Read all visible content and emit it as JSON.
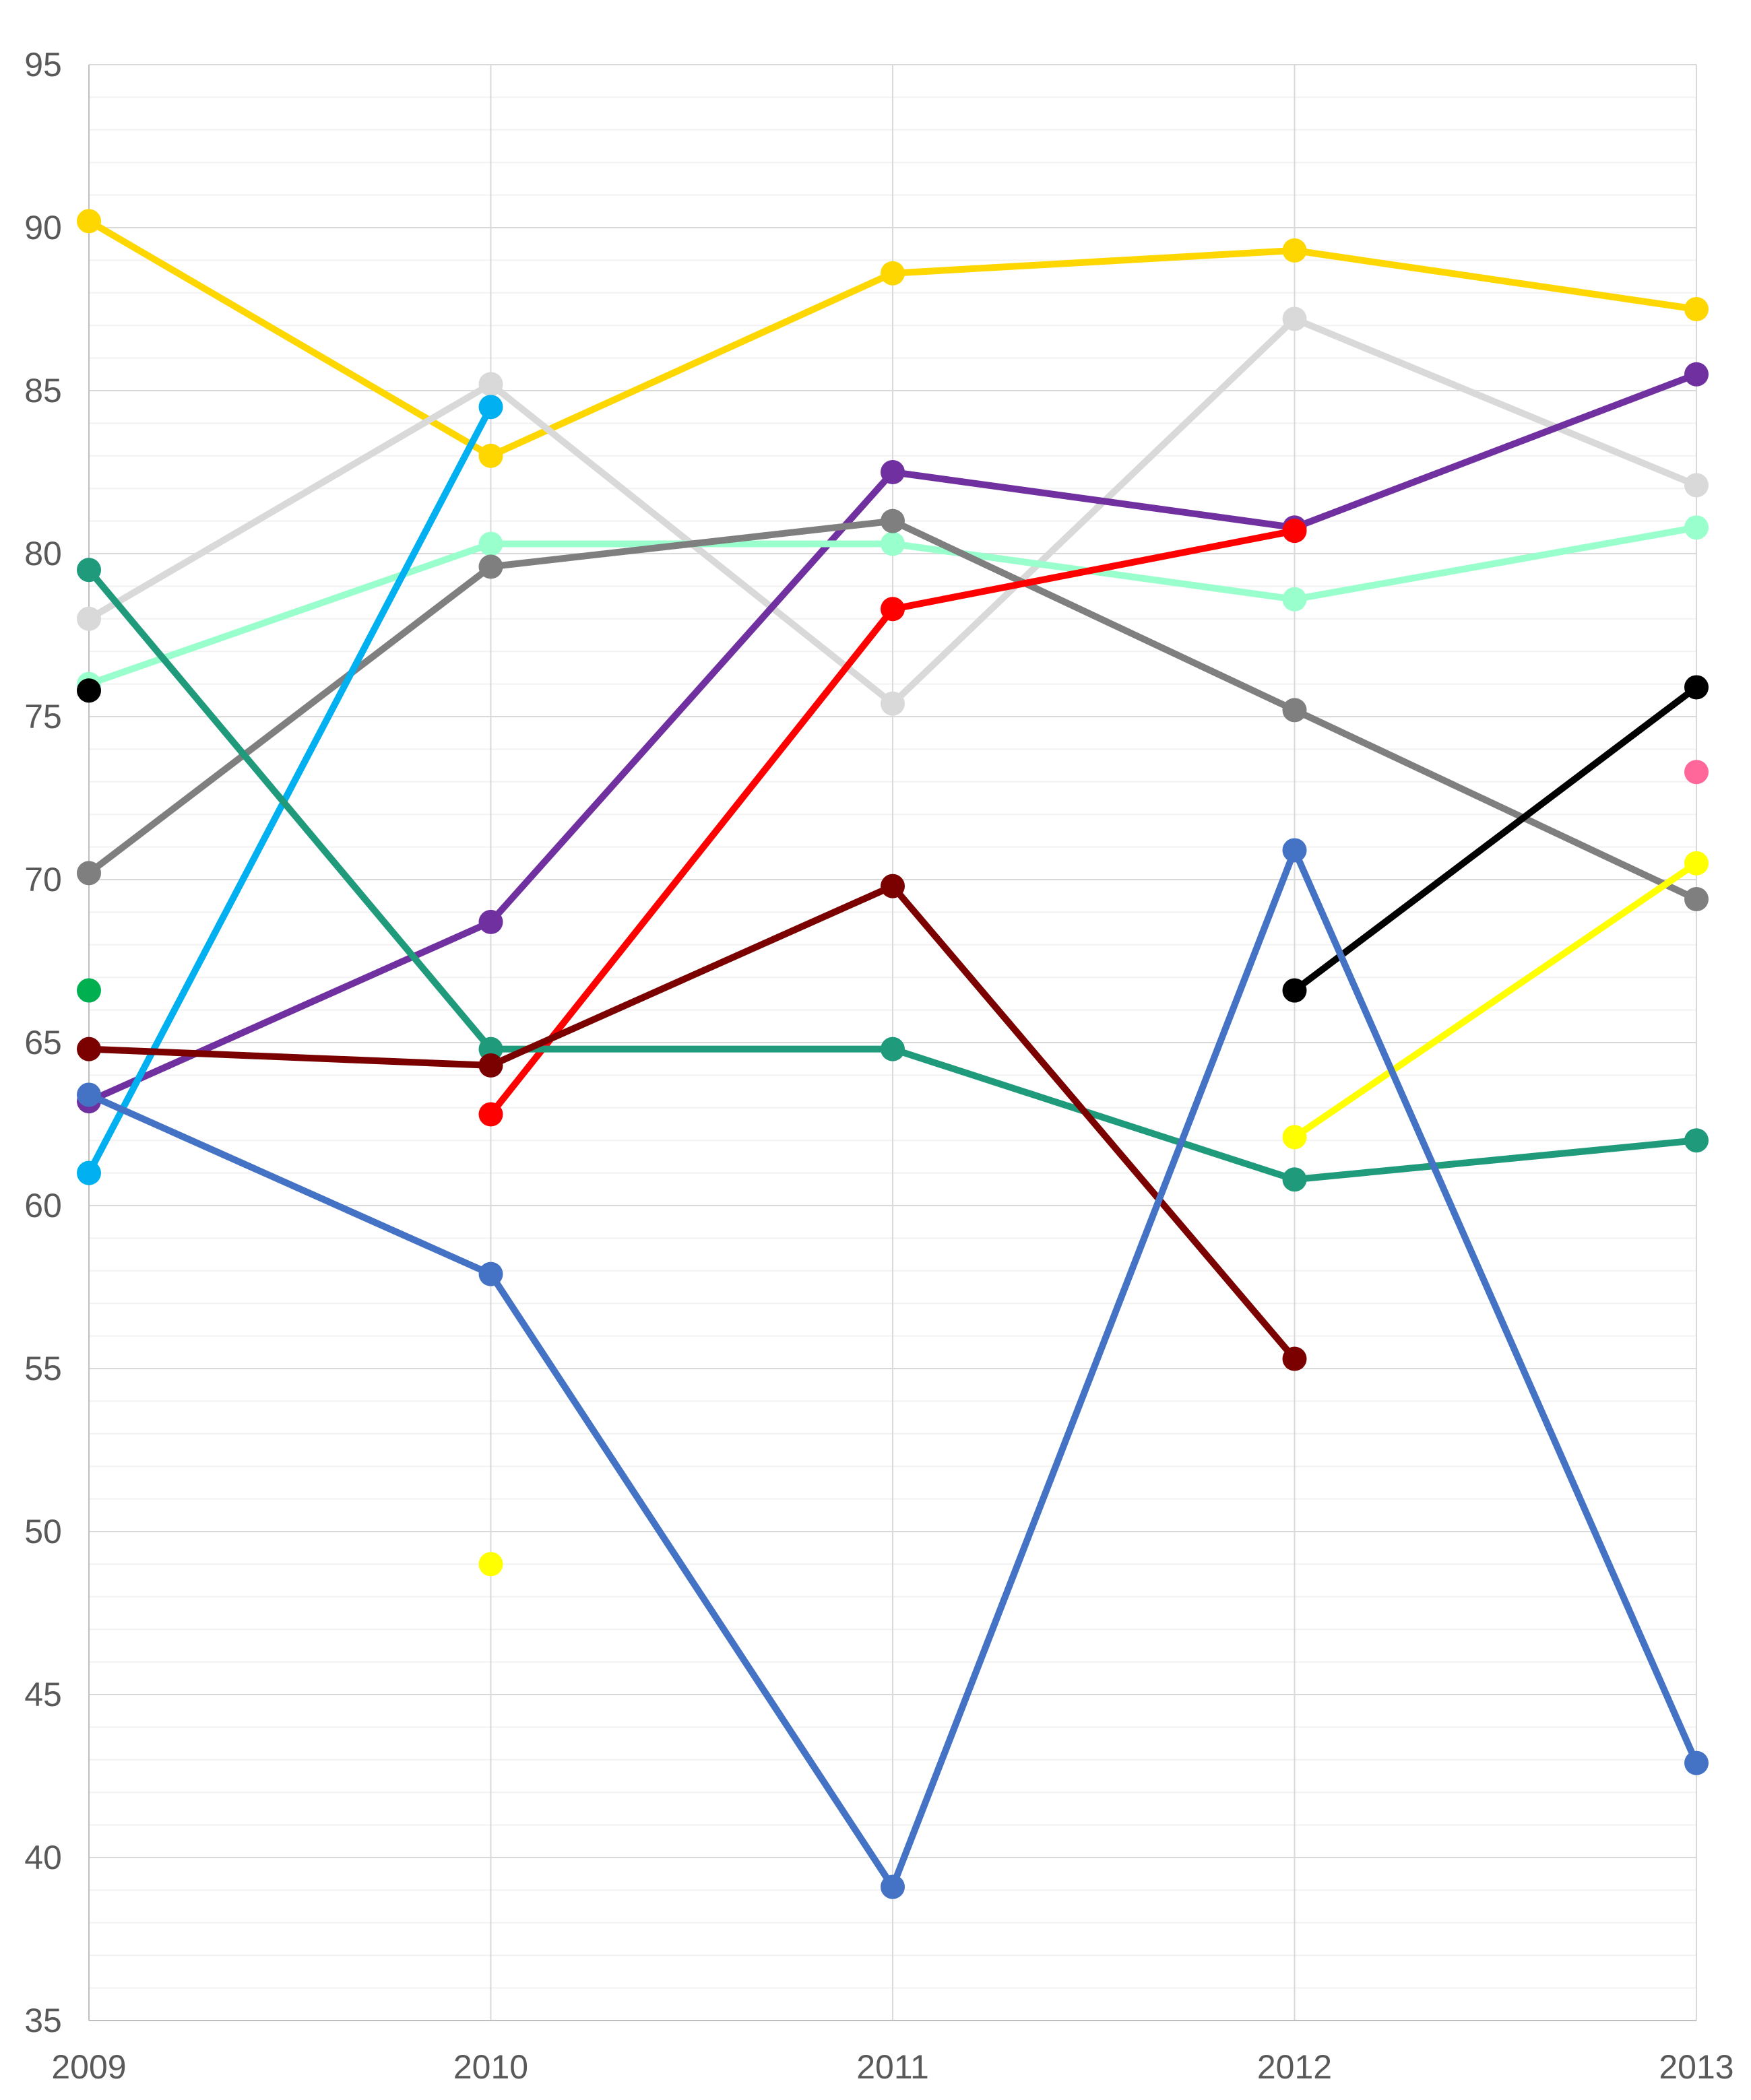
{
  "chart_data": {
    "type": "line",
    "title": "",
    "xlabel": "",
    "ylabel": "",
    "x": [
      "2009",
      "2010",
      "2011",
      "2012",
      "2013"
    ],
    "ylim": [
      35,
      95
    ],
    "yticks": [
      "35",
      "40",
      "45",
      "50",
      "55",
      "60",
      "65",
      "70",
      "75",
      "80",
      "85",
      "90",
      "95"
    ],
    "grid": {
      "major_y_step": 5,
      "minor_y_step": 1,
      "vertical_gridlines": true
    },
    "legend": "none",
    "series": [
      {
        "color": "#FFD700",
        "values": [
          90.2,
          83.0,
          88.6,
          89.3,
          87.5
        ]
      },
      {
        "color": "#D9D9D9",
        "values": [
          78.0,
          85.2,
          75.4,
          87.2,
          82.1
        ]
      },
      {
        "color": "#7030A0",
        "values": [
          63.2,
          68.7,
          82.5,
          80.8,
          85.5
        ]
      },
      {
        "color": "#99FFCC",
        "values": [
          76.0,
          80.3,
          80.3,
          78.6,
          80.8
        ]
      },
      {
        "color": "#7F7F7F",
        "values": [
          70.2,
          79.6,
          81.0,
          75.2,
          69.4
        ]
      },
      {
        "color": "#FF0000",
        "values": [
          null,
          62.8,
          78.3,
          80.7,
          null
        ]
      },
      {
        "color": "#000000",
        "values": [
          75.8,
          null,
          null,
          66.6,
          75.9
        ]
      },
      {
        "color": "#FF6699",
        "values": [
          null,
          null,
          null,
          null,
          73.3
        ]
      },
      {
        "color": "#FFFF00",
        "values": [
          null,
          49.0,
          null,
          62.1,
          70.5
        ]
      },
      {
        "color": "#00B0F0",
        "values": [
          61.0,
          84.5,
          null,
          null,
          null
        ]
      },
      {
        "color": "#1F9A7B",
        "values": [
          79.5,
          64.8,
          64.8,
          60.8,
          62.0
        ]
      },
      {
        "color": "#00B050",
        "values": [
          66.6,
          null,
          null,
          null,
          null
        ]
      },
      {
        "color": "#7B0000",
        "values": [
          64.8,
          64.3,
          69.8,
          55.3,
          null
        ]
      },
      {
        "color": "#4472C4",
        "values": [
          63.4,
          57.9,
          39.1,
          70.9,
          42.9
        ]
      }
    ]
  }
}
